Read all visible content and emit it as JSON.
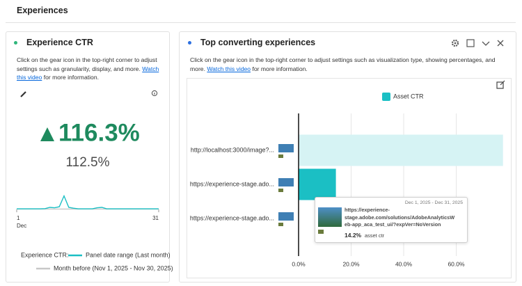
{
  "header": {
    "title": "Experiences"
  },
  "panels": [
    {
      "title": "Experience CTR",
      "description": "Click on the gear icon in the top-right corner to adjust settings such as granularity, display, and more. ",
      "link": "Watch this video",
      "description_end": " for more information."
    },
    {
      "title": "Top converting experiences",
      "description": "Click on the gear icon in the top-right corner to adjust settings such as visualization type, showing percentages, and more. ",
      "link": "Watch this video",
      "description_end": " for more information."
    }
  ],
  "metric": {
    "change": "116.3%",
    "value": "112.5%"
  },
  "chart_data": [
    {
      "type": "line",
      "x": [
        1,
        2,
        3,
        4,
        5,
        6,
        7,
        8,
        9,
        10,
        11,
        12,
        13,
        14,
        15,
        16,
        17,
        18,
        19,
        20,
        21,
        22,
        23,
        24,
        25,
        26,
        27,
        28,
        29,
        30,
        31
      ],
      "xlim": [
        1,
        31
      ],
      "xticks": [
        1,
        31
      ],
      "x_sublabel": "Dec",
      "ylim": [
        0,
        10
      ],
      "legend_title": "Experience CTR:",
      "series": [
        {
          "name": "Panel date range (Last month)",
          "color": "#1bbfc4",
          "values": [
            0.3,
            0.3,
            0.3,
            0.3,
            0.3,
            0.3,
            0.4,
            1.0,
            0.8,
            1.3,
            6.5,
            1.0,
            0.6,
            0.3,
            0.3,
            0.3,
            0.3,
            0.8,
            1.0,
            0.3,
            0.3,
            0.3,
            0.3,
            0.3,
            0.3,
            0.3,
            0.3,
            0.3,
            0.3,
            0.3,
            0.3
          ]
        },
        {
          "name": "Month before (Nov 1, 2025 - Nov 30, 2025)",
          "color": "#c8c8c8",
          "values": [
            0.2,
            0.2,
            0.2,
            0.2,
            0.2,
            0.2,
            0.2,
            0.2,
            0.2,
            0.2,
            0.2,
            0.2,
            0.2,
            0.2,
            0.2,
            0.2,
            0.2,
            0.2,
            0.2,
            0.2,
            0.2,
            0.2,
            0.2,
            0.2,
            0.2,
            0.2,
            0.2,
            0.2,
            0.2,
            0.2,
            0.2
          ]
        }
      ]
    },
    {
      "type": "bar",
      "categories": [
        "http://localhost:3000/image?...",
        "https://experience-stage.ado...",
        "https://experience-stage.ado..."
      ],
      "series": [
        {
          "name": "Asset CTR",
          "color": "#1bbfc4",
          "faded_color": "#d6f3f4",
          "values": [
            77.8,
            14.2,
            0
          ]
        }
      ],
      "xlim": [
        0,
        80
      ],
      "xticks": [
        {
          "value": 0,
          "label": "0.0%"
        },
        {
          "value": 20,
          "label": "20.0%"
        },
        {
          "value": 40,
          "label": "40.0%"
        },
        {
          "value": 60,
          "label": "60.0%"
        }
      ],
      "grid": true,
      "tooltip": {
        "active_index": 1,
        "date": "Dec 1, 2025 - Dec 31, 2025",
        "url": "https://experience-stage.adobe.com/solutions/AdobeAnalyticsWeb-app_aca_test_ui/?expVer=NoVersion",
        "value": "14.2%",
        "metric": "asset ctr"
      }
    }
  ]
}
